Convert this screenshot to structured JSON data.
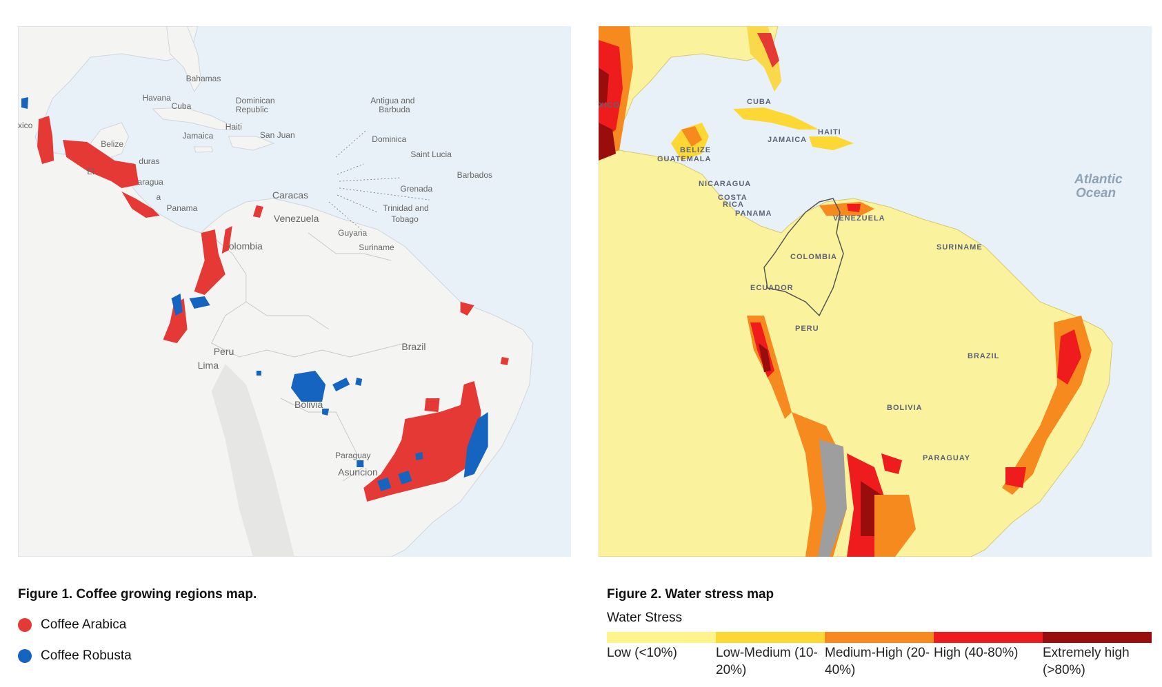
{
  "figure1": {
    "caption": "Figure 1. Coffee growing regions map.",
    "legend": [
      {
        "label": "Coffee Arabica",
        "color": "#e53935"
      },
      {
        "label": "Coffee Robusta",
        "color": "#1565c0"
      }
    ],
    "map_labels": {
      "bahamas": "Bahamas",
      "havana": "Havana",
      "cuba": "Cuba",
      "dominican": "Dominican",
      "republic": "Republic",
      "mexico": "xico",
      "haiti": "Haiti",
      "san_juan": "San Juan",
      "jamaica": "Jamaica",
      "belize": "Belize",
      "honduras": "duras",
      "nicaragua": "aragua",
      "costa_rica": "a",
      "el": "El",
      "panama": "Panama",
      "antigua": "Antigua and",
      "barbuda": "Barbuda",
      "dominica": "Dominica",
      "saint_lucia": "Saint Lucia",
      "barbados": "Barbados",
      "grenada": "Grenada",
      "trinidad": "Trinidad and",
      "tobago": "Tobago",
      "caracas": "Caracas",
      "venezuela": "Venezuela",
      "guyana": "Guyana",
      "suriname": "Suriname",
      "colombia": "olombia",
      "brazil": "Brazil",
      "peru": "Peru",
      "lima": "Lima",
      "bolivia": "Bolivia",
      "paraguay": "Paraguay",
      "asuncion": "Asuncion"
    }
  },
  "figure2": {
    "caption": "Figure 2. Water stress map",
    "legend_title": "Water Stress",
    "scale": [
      {
        "label": "Low (<10%)",
        "color": "#fef48a"
      },
      {
        "label": "Low-Medium (10-20%)",
        "color": "#fdd835"
      },
      {
        "label": "Medium-High (20-40%)",
        "color": "#f68a1f"
      },
      {
        "label": "High (40-80%)",
        "color": "#ee1c1c"
      },
      {
        "label": "Extremely high (>80%)",
        "color": "#990d0d"
      }
    ],
    "map_labels": {
      "atlantic": "Atlantic",
      "ocean": "Ocean",
      "mexico": "XICO",
      "cuba": "CUBA",
      "haiti": "HAITI",
      "jamaica": "JAMAICA",
      "belize": "BELIZE",
      "guatemala": "GUATEMALA",
      "nicaragua": "NICARAGUA",
      "costa": "COSTA",
      "rica": "RICA",
      "panama": "PANAMA",
      "venezuela": "VENEZUELA",
      "suriname": "SURINAME",
      "colombia": "COLOMBIA",
      "ecuador": "ECUADOR",
      "peru": "PERU",
      "brazil": "BRAZIL",
      "bolivia": "BOLIVIA",
      "paraguay": "PARAGUAY"
    }
  }
}
